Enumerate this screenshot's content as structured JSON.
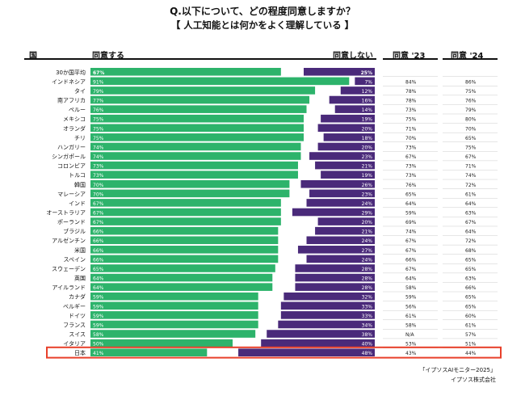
{
  "title": "Q.以下について、どの程度同意しますか？",
  "subtitle": "【 人工知能とは何かをよく理解している 】",
  "headers": {
    "country": "国",
    "agree": "同意する",
    "disagree": "同意しない",
    "y23": "同意 '23",
    "y24": "同意 '24"
  },
  "footer": {
    "line1": "「イプソスAIモニター2025」",
    "line2": "イプソス株式会社"
  },
  "colors": {
    "agree": "#2db36b",
    "disagree": "#4a2a7a",
    "highlight": "#e8402a",
    "rule": "#111111"
  },
  "chart_data": {
    "type": "bar",
    "categories": [
      "30か国平均",
      "インドネシア",
      "タイ",
      "南アフリカ",
      "ペルー",
      "メキシコ",
      "オランダ",
      "チリ",
      "ハンガリー",
      "シンガポール",
      "コロンビア",
      "トルコ",
      "韓国",
      "マレーシア",
      "インド",
      "オーストラリア",
      "ポーランド",
      "ブラジル",
      "アルゼンチン",
      "米国",
      "スペイン",
      "スウェーデン",
      "英国",
      "アイルランド",
      "カナダ",
      "ベルギー",
      "ドイツ",
      "フランス",
      "スイス",
      "イタリア",
      "日本"
    ],
    "series": [
      {
        "name": "同意する",
        "values": [
          67,
          91,
          79,
          77,
          76,
          75,
          75,
          75,
          74,
          74,
          73,
          73,
          70,
          70,
          67,
          67,
          67,
          66,
          66,
          66,
          66,
          65,
          64,
          64,
          59,
          59,
          59,
          59,
          58,
          50,
          41
        ]
      },
      {
        "name": "同意しない",
        "values": [
          25,
          7,
          12,
          16,
          14,
          19,
          20,
          18,
          20,
          23,
          21,
          19,
          26,
          23,
          24,
          29,
          20,
          21,
          24,
          27,
          24,
          28,
          28,
          28,
          32,
          33,
          33,
          34,
          38,
          40,
          48
        ]
      }
    ],
    "y23": [
      "",
      "84%",
      "78%",
      "78%",
      "73%",
      "75%",
      "71%",
      "70%",
      "73%",
      "67%",
      "73%",
      "73%",
      "76%",
      "65%",
      "64%",
      "59%",
      "69%",
      "74%",
      "67%",
      "67%",
      "66%",
      "67%",
      "64%",
      "58%",
      "59%",
      "56%",
      "61%",
      "58%",
      "N/A",
      "53%",
      "43%"
    ],
    "y24": [
      "",
      "86%",
      "75%",
      "76%",
      "79%",
      "80%",
      "70%",
      "65%",
      "75%",
      "67%",
      "71%",
      "74%",
      "72%",
      "61%",
      "64%",
      "63%",
      "67%",
      "64%",
      "72%",
      "68%",
      "65%",
      "65%",
      "63%",
      "66%",
      "65%",
      "65%",
      "60%",
      "61%",
      "57%",
      "51%",
      "44%"
    ],
    "highlight_category": "日本",
    "xlim": [
      0,
      100
    ]
  }
}
